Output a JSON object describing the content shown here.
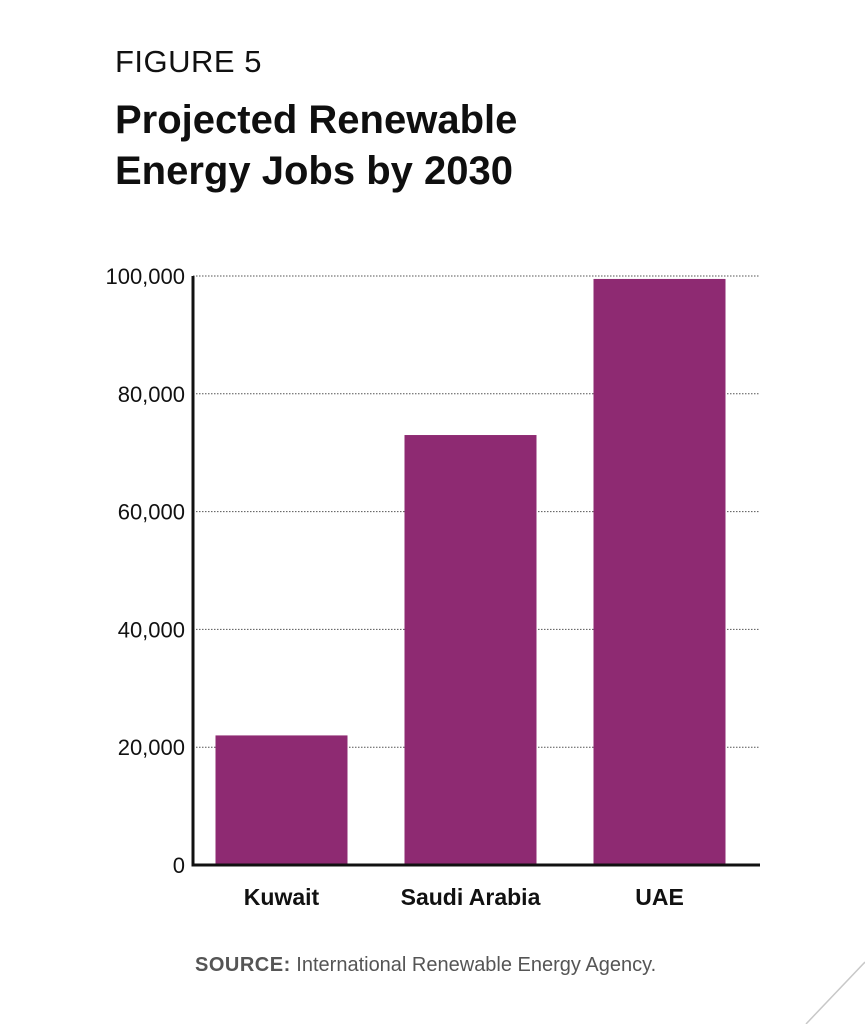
{
  "figure": {
    "label": "FIGURE 5",
    "title_line1": "Projected Renewable",
    "title_line2": "Energy Jobs by 2030"
  },
  "source": {
    "label": "SOURCE:",
    "text": "International Renewable Energy Agency."
  },
  "colors": {
    "bar": "#8e2a72",
    "axis": "#111111",
    "grid": "#555555"
  },
  "chart_data": {
    "type": "bar",
    "title": "Projected Renewable Energy Jobs by 2030",
    "xlabel": "",
    "ylabel": "",
    "categories": [
      "Kuwait",
      "Saudi Arabia",
      "UAE"
    ],
    "values": [
      22000,
      73000,
      99500
    ],
    "ylim": [
      0,
      100000
    ],
    "yticks": [
      0,
      20000,
      40000,
      60000,
      80000,
      100000
    ],
    "ytick_labels": [
      "0",
      "20,000",
      "40,000",
      "60,000",
      "80,000",
      "100,000"
    ],
    "grid": true,
    "legend": "none"
  }
}
